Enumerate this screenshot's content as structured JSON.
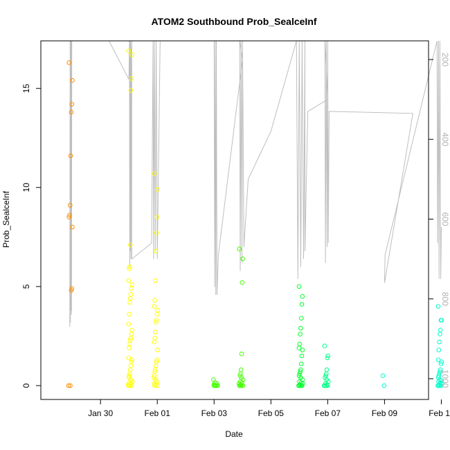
{
  "chart_data": {
    "type": "scatter",
    "title": "ATOM2 Southbound Prob_SealceInf",
    "xlabel": "Date",
    "ylabel": "Prob_SealceInf",
    "x_ticks": [
      "Jan 30",
      "Feb 01",
      "Feb 03",
      "Feb 05",
      "Feb 07",
      "Feb 09",
      "Feb 11"
    ],
    "y_ticks": [
      0,
      5,
      10,
      15
    ],
    "y_right_ticks": [
      200,
      400,
      600,
      800,
      1000
    ],
    "xlim_days": [
      -2.1,
      11.55
    ],
    "x_tick_days": [
      0,
      2,
      4,
      6,
      8,
      10,
      12
    ],
    "ylim": [
      -0.7,
      17.4
    ],
    "y_right_range": [
      200,
      1000
    ],
    "point_colors": {
      "orange": "#ff8c00",
      "yellow": "#ffff00",
      "chartreuse": "#b8ff00",
      "lime": "#44ff00",
      "green": "#00ff2a",
      "spring": "#00ff88",
      "cyan": "#00ffcc"
    },
    "line_color": "#bebebe",
    "clusters": [
      {
        "color": "orange",
        "day": -1.05,
        "points": [
          16.3,
          15.4,
          14.2,
          13.8,
          11.6,
          9.1,
          8.6,
          8.5,
          8.0,
          4.9,
          4.8,
          0.0,
          0.0
        ]
      },
      {
        "color": "yellow",
        "day": 1.05,
        "points": [
          16.9,
          16.7,
          15.5,
          14.9,
          7.1,
          6.0,
          5.9,
          5.3,
          5.1,
          4.9,
          4.6,
          4.4,
          4.2,
          3.6,
          3.1,
          2.8,
          2.6,
          2.4,
          2.3,
          2.1,
          1.9,
          1.4,
          1.3,
          1.2,
          1.0,
          0.8,
          0.6,
          0.5,
          0.4,
          0.3,
          0.2,
          0.15,
          0.1,
          0.05,
          0.0,
          0.0,
          0.0
        ]
      },
      {
        "color": "yellow",
        "day": 1.95,
        "points": [
          10.7,
          9.9,
          8.5,
          7.7,
          6.8,
          5.3,
          4.3,
          4.0,
          3.8,
          3.6,
          3.3,
          3.2,
          2.7,
          2.4,
          2.2,
          1.8,
          1.3,
          1.2,
          1.0,
          0.8,
          0.7,
          0.5,
          0.4,
          0.3,
          0.2,
          0.1,
          0.05,
          0.0,
          0.0
        ]
      },
      {
        "color": "lime",
        "day": 4.05,
        "points": [
          0.3,
          0.15,
          0.1,
          0.05,
          0.0,
          0.0,
          0.0,
          0.0,
          0.0,
          0.0
        ]
      },
      {
        "color": "lime",
        "day": 4.95,
        "points": [
          6.9,
          6.4,
          5.2,
          1.6,
          0.8,
          0.6,
          0.5,
          0.4,
          0.3,
          0.2,
          0.15,
          0.1,
          0.05,
          0.0,
          0.0,
          0.0,
          0.0,
          0.0
        ]
      },
      {
        "color": "green",
        "day": 7.05,
        "points": [
          5.0,
          4.5,
          4.1,
          3.4,
          2.9,
          2.6,
          2.1,
          1.9,
          1.8,
          1.5,
          1.1,
          0.8,
          0.7,
          0.6,
          0.5,
          0.4,
          0.3,
          0.2,
          0.15,
          0.1,
          0.05,
          0.0,
          0.0,
          0.0,
          0.0,
          0.0
        ]
      },
      {
        "color": "spring",
        "day": 7.95,
        "points": [
          2.0,
          1.5,
          1.4,
          0.8,
          0.6,
          0.5,
          0.4,
          0.3,
          0.2,
          0.1,
          0.05,
          0.0,
          0.0,
          0.0,
          0.0
        ]
      },
      {
        "color": "cyan",
        "day": 10.0,
        "points": [
          0.5,
          0.0
        ]
      },
      {
        "color": "cyan",
        "day": 11.95,
        "points": [
          4.0,
          3.3,
          3.3,
          2.8,
          2.6,
          2.2,
          1.8,
          1.3,
          1.2,
          1.1,
          0.8,
          0.7,
          0.6,
          0.5,
          0.4,
          0.3,
          0.25,
          0.2,
          0.15,
          0.1,
          0.05,
          0.0,
          0.0,
          0.0,
          0.0,
          0.0
        ]
      }
    ],
    "depth_track": [
      [
        -1.08,
        870
      ],
      [
        -1.07,
        100
      ],
      [
        -1.06,
        860
      ],
      [
        -1.05,
        100
      ],
      [
        -1.04,
        830
      ],
      [
        -1.03,
        100
      ],
      [
        -1.02,
        840
      ],
      [
        -1.01,
        100
      ],
      [
        -0.5,
        100
      ],
      [
        0.3,
        150
      ],
      [
        1.0,
        250
      ],
      [
        1.02,
        100
      ],
      [
        1.03,
        720
      ],
      [
        1.04,
        150
      ],
      [
        1.05,
        680
      ],
      [
        1.06,
        100
      ],
      [
        1.07,
        700
      ],
      [
        1.08,
        180
      ],
      [
        1.1,
        100
      ],
      [
        1.1,
        700
      ],
      [
        1.8,
        660
      ],
      [
        1.85,
        100
      ],
      [
        1.87,
        700
      ],
      [
        1.9,
        100
      ],
      [
        1.93,
        680
      ],
      [
        1.96,
        100
      ],
      [
        2.0,
        700
      ],
      [
        2.1,
        100
      ],
      [
        3.2,
        150
      ],
      [
        4.0,
        100
      ],
      [
        4.02,
        770
      ],
      [
        4.04,
        110
      ],
      [
        4.06,
        790
      ],
      [
        4.08,
        100
      ],
      [
        4.1,
        790
      ],
      [
        4.15,
        690
      ],
      [
        5.0,
        200
      ],
      [
        4.9,
        100
      ],
      [
        4.92,
        730
      ],
      [
        4.95,
        100
      ],
      [
        4.98,
        710
      ],
      [
        5.0,
        100
      ],
      [
        5.05,
        670
      ],
      [
        5.2,
        500
      ],
      [
        6.0,
        380
      ],
      [
        6.9,
        100
      ],
      [
        6.95,
        750
      ],
      [
        7.0,
        100
      ],
      [
        7.05,
        720
      ],
      [
        7.1,
        100
      ],
      [
        7.15,
        700
      ],
      [
        7.2,
        110
      ],
      [
        7.2,
        680
      ],
      [
        7.3,
        330
      ],
      [
        8.0,
        300
      ],
      [
        7.9,
        100
      ],
      [
        7.92,
        710
      ],
      [
        7.95,
        100
      ],
      [
        7.98,
        670
      ],
      [
        8.0,
        100
      ],
      [
        8.02,
        660
      ],
      [
        8.05,
        330
      ],
      [
        11.0,
        335
      ],
      [
        10.0,
        760
      ],
      [
        10.02,
        690
      ],
      [
        11.85,
        100
      ],
      [
        11.87,
        660
      ],
      [
        11.9,
        110
      ],
      [
        11.92,
        750
      ],
      [
        11.95,
        100
      ],
      [
        11.98,
        750
      ],
      [
        12.0,
        620
      ]
    ]
  }
}
